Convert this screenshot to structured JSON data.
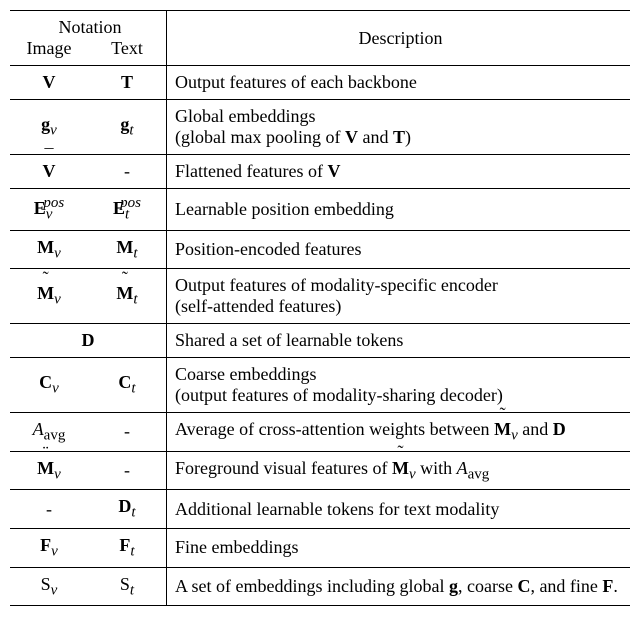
{
  "header": {
    "notation": "Notation",
    "image": "Image",
    "text": "Text",
    "description": "Description"
  },
  "rows": [
    {
      "image_html": "<b>V</b>",
      "text_html": "<b>T</b>",
      "desc_html": "Output features of each backbone"
    },
    {
      "image_html": "<b>g</b><sub><i>v</i></sub>",
      "text_html": "<b>g</b><sub><i>t</i></sub>",
      "desc_html": "Global embeddings<br>(global max pooling of <b>V</b> and <b>T</b>)"
    },
    {
      "image_html": "<span style='position:relative'><span style='position:absolute;left:0;right:0;top:-0.85em;text-align:center'>¯</span><b>V</b></span>",
      "text_html": "-",
      "desc_html": "Flattened features of <b>V</b>"
    },
    {
      "image_html": "<b>E</b><sub><i>v</i></sub><sup style='margin-left:-0.6em'><i>pos</i></sup>",
      "text_html": "<b>E</b><sub><i>t</i></sub><sup style='margin-left:-0.6em'><i>pos</i></sup>",
      "desc_html": "Learnable position embedding"
    },
    {
      "image_html": "<b>M</b><sub><i>v</i></sub>",
      "text_html": "<b>M</b><sub><i>t</i></sub>",
      "desc_html": "Position-encoded features"
    },
    {
      "image_html": "<span style='position:relative'><span style='position:absolute;left:0;right:0;top:-0.85em;text-align:center'>˜</span><b>M</b></span><sub><i>v</i></sub>",
      "text_html": "<span style='position:relative'><span style='position:absolute;left:0;right:0;top:-0.85em;text-align:center'>˜</span><b>M</b></span><sub><i>t</i></sub>",
      "desc_html": "Output features of modality-specific encoder<br>(self-attended features)"
    },
    {
      "merged": true,
      "merged_html": "<b>D</b>",
      "desc_html": "Shared a set of learnable tokens"
    },
    {
      "image_html": "<b>C</b><sub><i>v</i></sub>",
      "text_html": "<b>C</b><sub><i>t</i></sub>",
      "desc_html": "Coarse embeddings<br>(output features of modality-sharing decoder)"
    },
    {
      "image_html": "<i>A</i><sub>avg</sub>",
      "text_html": "-",
      "desc_html": "Average of cross-attention weights between <span style='position:relative'><span style='position:absolute;left:0;right:0;top:-0.85em;text-align:center'>˜</span><b>M</b></span><sub><i>v</i></sub> and <b>D</b>"
    },
    {
      "image_html": "<span style='position:relative'><span style='position:absolute;left:0;right:0;top:-0.85em;text-align:center'>¨</span><b>M</b></span><sub><i>v</i></sub>",
      "text_html": "-",
      "desc_html": "Foreground visual features of <span style='position:relative'><span style='position:absolute;left:0;right:0;top:-0.85em;text-align:center'>˜</span><b>M</b></span><sub><i>v</i></sub> with <i>A</i><sub>avg</sub>"
    },
    {
      "image_html": "-",
      "text_html": "<b>D</b><sub><i>t</i></sub>",
      "desc_html": "Additional learnable tokens for text modality"
    },
    {
      "image_html": "<b>F</b><sub><i>v</i></sub>",
      "text_html": "<b>F</b><sub><i>t</i></sub>",
      "desc_html": "Fine embeddings"
    },
    {
      "image_html": "<span style='font-family:\"Brush Script MT\",cursive'>S</span><sub><i>v</i></sub>",
      "text_html": "<span style='font-family:\"Brush Script MT\",cursive'>S</span><sub><i>t</i></sub>",
      "desc_html": "A set of embeddings including global <b>g</b>, coarse <b>C</b>, and fine <b>F</b>."
    }
  ]
}
